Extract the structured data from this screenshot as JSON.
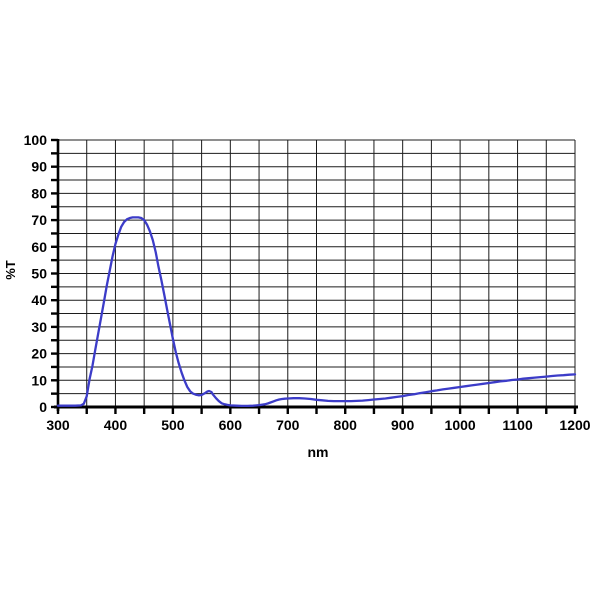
{
  "page": {
    "background": "#ffffff"
  },
  "chart_data": {
    "type": "line",
    "title": "",
    "xlabel": "nm",
    "ylabel": "%T",
    "xlim": [
      300,
      1200
    ],
    "ylim": [
      0,
      100
    ],
    "x_tick_labels": [
      300,
      400,
      500,
      600,
      700,
      800,
      900,
      1000,
      1100,
      1200
    ],
    "x_minor_step": 50,
    "y_tick_labels": [
      0,
      10,
      20,
      30,
      40,
      50,
      60,
      70,
      80,
      90,
      100
    ],
    "y_minor_step": 5,
    "grid": "both, minor gridlines on",
    "legend_position": "none",
    "colors": {
      "curve": "#3c3cc8",
      "grid": "#1c1c1c",
      "axis": "#000000",
      "text": "#000000",
      "background": "#ffffff"
    },
    "series": [
      {
        "name": "%T",
        "color": "#3c3cc8",
        "points": [
          [
            300,
            0.5
          ],
          [
            310,
            0.5
          ],
          [
            320,
            0.5
          ],
          [
            330,
            0.5
          ],
          [
            340,
            0.6
          ],
          [
            345,
            1.2
          ],
          [
            350,
            4
          ],
          [
            355,
            10.5
          ],
          [
            360,
            15.5
          ],
          [
            365,
            21.5
          ],
          [
            370,
            27.5
          ],
          [
            375,
            33.5
          ],
          [
            380,
            39.5
          ],
          [
            385,
            45.5
          ],
          [
            390,
            51
          ],
          [
            395,
            56.5
          ],
          [
            400,
            61
          ],
          [
            405,
            64.5
          ],
          [
            410,
            67.5
          ],
          [
            415,
            69.3
          ],
          [
            420,
            70.3
          ],
          [
            425,
            70.8
          ],
          [
            430,
            71
          ],
          [
            435,
            71
          ],
          [
            440,
            71
          ],
          [
            445,
            70.8
          ],
          [
            450,
            70
          ],
          [
            455,
            68.3
          ],
          [
            460,
            65.8
          ],
          [
            465,
            62.5
          ],
          [
            470,
            58
          ],
          [
            475,
            52.5
          ],
          [
            480,
            47.5
          ],
          [
            485,
            42
          ],
          [
            490,
            36.5
          ],
          [
            495,
            31
          ],
          [
            500,
            25.5
          ],
          [
            505,
            20.5
          ],
          [
            510,
            16.5
          ],
          [
            515,
            13
          ],
          [
            520,
            10
          ],
          [
            525,
            7.5
          ],
          [
            530,
            5.9
          ],
          [
            535,
            5
          ],
          [
            540,
            4.6
          ],
          [
            545,
            4.4
          ],
          [
            550,
            4.5
          ],
          [
            555,
            5.1
          ],
          [
            560,
            5.8
          ],
          [
            563,
            6
          ],
          [
            567,
            5.6
          ],
          [
            570,
            4.6
          ],
          [
            575,
            3.3
          ],
          [
            580,
            2.2
          ],
          [
            585,
            1.4
          ],
          [
            590,
            1
          ],
          [
            595,
            0.8
          ],
          [
            600,
            0.6
          ],
          [
            610,
            0.5
          ],
          [
            620,
            0.4
          ],
          [
            630,
            0.4
          ],
          [
            640,
            0.5
          ],
          [
            650,
            0.7
          ],
          [
            660,
            1
          ],
          [
            665,
            1.3
          ],
          [
            670,
            1.7
          ],
          [
            675,
            2.1
          ],
          [
            680,
            2.5
          ],
          [
            685,
            2.8
          ],
          [
            690,
            3
          ],
          [
            695,
            3.1
          ],
          [
            700,
            3.2
          ],
          [
            710,
            3.3
          ],
          [
            720,
            3.3
          ],
          [
            730,
            3.2
          ],
          [
            740,
            3
          ],
          [
            750,
            2.7
          ],
          [
            760,
            2.5
          ],
          [
            770,
            2.3
          ],
          [
            780,
            2.2
          ],
          [
            790,
            2.2
          ],
          [
            800,
            2.2
          ],
          [
            810,
            2.2
          ],
          [
            820,
            2.3
          ],
          [
            830,
            2.4
          ],
          [
            840,
            2.6
          ],
          [
            850,
            2.8
          ],
          [
            860,
            3
          ],
          [
            870,
            3.2
          ],
          [
            880,
            3.5
          ],
          [
            890,
            3.8
          ],
          [
            900,
            4.1
          ],
          [
            910,
            4.5
          ],
          [
            920,
            4.8
          ],
          [
            930,
            5.2
          ],
          [
            940,
            5.5
          ],
          [
            950,
            5.9
          ],
          [
            960,
            6.2
          ],
          [
            970,
            6.6
          ],
          [
            980,
            6.9
          ],
          [
            990,
            7.2
          ],
          [
            1000,
            7.5
          ],
          [
            1010,
            7.8
          ],
          [
            1020,
            8.1
          ],
          [
            1030,
            8.4
          ],
          [
            1040,
            8.7
          ],
          [
            1050,
            9
          ],
          [
            1060,
            9.3
          ],
          [
            1070,
            9.6
          ],
          [
            1080,
            9.8
          ],
          [
            1090,
            10.1
          ],
          [
            1100,
            10.3
          ],
          [
            1110,
            10.6
          ],
          [
            1120,
            10.8
          ],
          [
            1130,
            11
          ],
          [
            1140,
            11.2
          ],
          [
            1150,
            11.4
          ],
          [
            1160,
            11.6
          ],
          [
            1170,
            11.8
          ],
          [
            1180,
            11.9
          ],
          [
            1190,
            12.1
          ],
          [
            1200,
            12.2
          ]
        ]
      }
    ]
  }
}
